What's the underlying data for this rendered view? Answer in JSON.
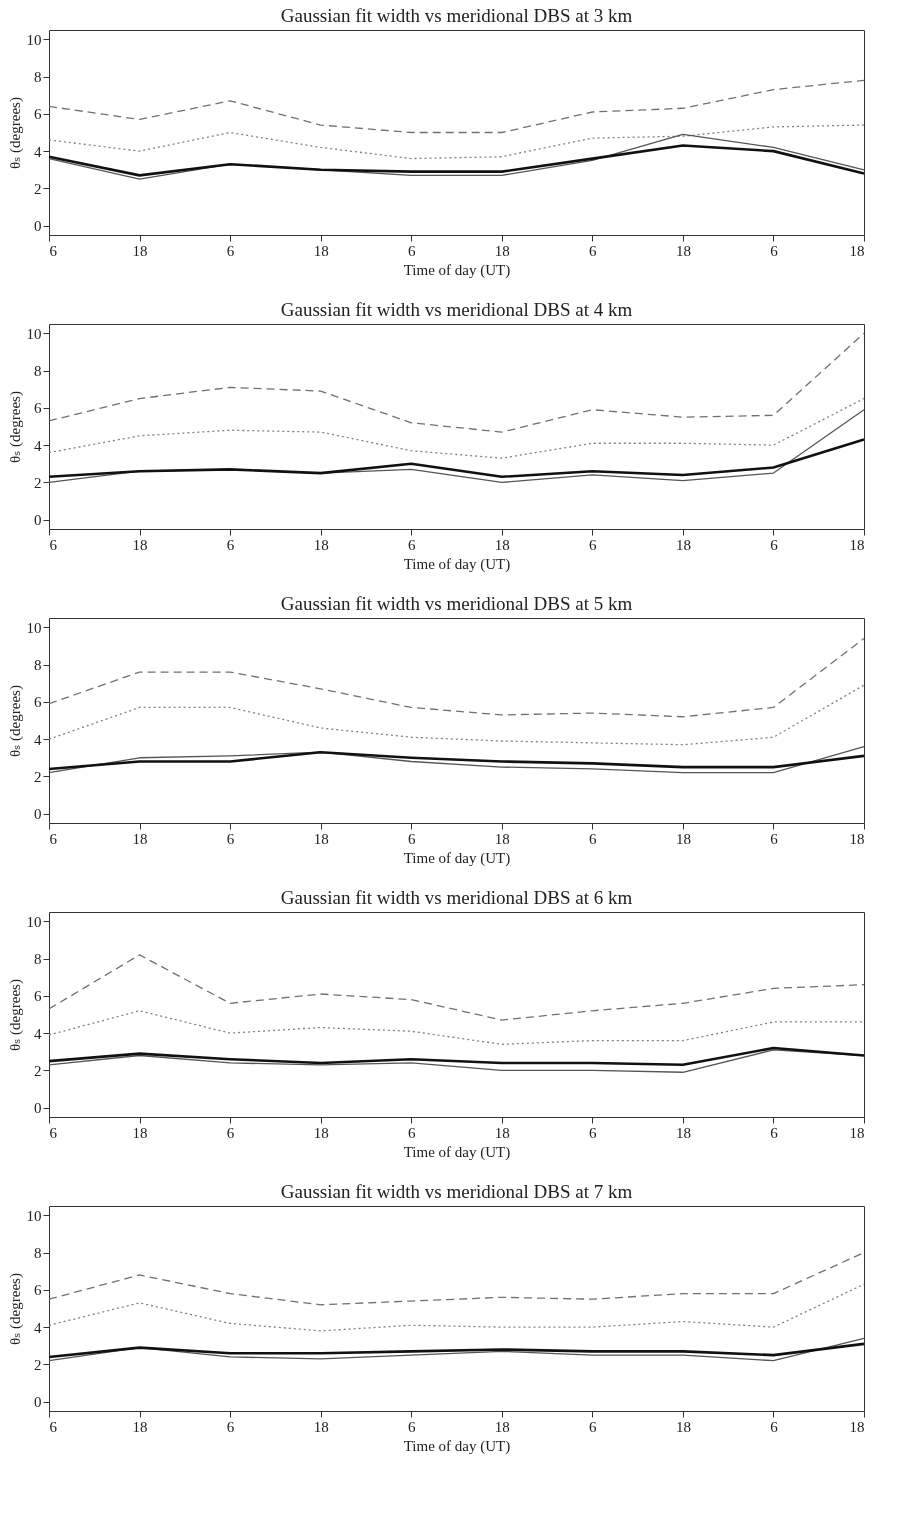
{
  "chart_data": [
    {
      "type": "line",
      "title": "Gaussian fit width vs meridional DBS at 3 km",
      "xlabel": "Time of day (UT)",
      "ylabel": "θₛ (degrees)",
      "categories": [
        "6",
        "18",
        "6",
        "18",
        "6",
        "18",
        "6",
        "18",
        "6",
        "18"
      ],
      "ylim": [
        -0.5,
        10.5
      ],
      "yticks": [
        0,
        2,
        4,
        6,
        8,
        10
      ],
      "grid": false,
      "series": [
        {
          "color": "#707070",
          "line_style": "dashed",
          "values": [
            6.4,
            5.7,
            6.7,
            5.4,
            5.0,
            5.0,
            6.1,
            6.3,
            7.3,
            7.8
          ]
        },
        {
          "color": "#808080",
          "line_style": "dotted",
          "values": [
            4.6,
            4.0,
            5.0,
            4.2,
            3.6,
            3.7,
            4.7,
            4.8,
            5.3,
            5.4
          ]
        },
        {
          "color": "#555555",
          "line_style": "solid",
          "values": [
            3.6,
            2.5,
            3.3,
            3.0,
            2.7,
            2.7,
            3.5,
            4.9,
            4.2,
            3.0
          ]
        },
        {
          "color": "#111111",
          "line_style": "solid",
          "values": [
            3.7,
            2.7,
            3.3,
            3.0,
            2.9,
            2.9,
            3.6,
            4.3,
            4.0,
            2.8
          ]
        }
      ]
    },
    {
      "type": "line",
      "title": "Gaussian fit width vs meridional DBS at 4 km",
      "xlabel": "Time of day (UT)",
      "ylabel": "θₛ (degrees)",
      "categories": [
        "6",
        "18",
        "6",
        "18",
        "6",
        "18",
        "6",
        "18",
        "6",
        "18"
      ],
      "ylim": [
        -0.5,
        10.5
      ],
      "yticks": [
        0,
        2,
        4,
        6,
        8,
        10
      ],
      "grid": false,
      "series": [
        {
          "color": "#707070",
          "line_style": "dashed",
          "values": [
            5.3,
            6.5,
            7.1,
            6.9,
            5.2,
            4.7,
            5.9,
            5.5,
            5.6,
            10.0
          ]
        },
        {
          "color": "#808080",
          "line_style": "dotted",
          "values": [
            3.6,
            4.5,
            4.8,
            4.7,
            3.7,
            3.3,
            4.1,
            4.1,
            4.0,
            6.5
          ]
        },
        {
          "color": "#555555",
          "line_style": "solid",
          "values": [
            2.0,
            2.6,
            2.7,
            2.5,
            2.7,
            2.0,
            2.4,
            2.1,
            2.5,
            5.9
          ]
        },
        {
          "color": "#111111",
          "line_style": "solid",
          "values": [
            2.3,
            2.6,
            2.7,
            2.5,
            3.0,
            2.3,
            2.6,
            2.4,
            2.8,
            4.3
          ]
        }
      ]
    },
    {
      "type": "line",
      "title": "Gaussian fit width vs meridional DBS at 5 km",
      "xlabel": "Time of day (UT)",
      "ylabel": "θₛ (degrees)",
      "categories": [
        "6",
        "18",
        "6",
        "18",
        "6",
        "18",
        "6",
        "18",
        "6",
        "18"
      ],
      "ylim": [
        -0.5,
        10.5
      ],
      "yticks": [
        0,
        2,
        4,
        6,
        8,
        10
      ],
      "grid": false,
      "series": [
        {
          "color": "#707070",
          "line_style": "dashed",
          "values": [
            5.9,
            7.6,
            7.6,
            6.7,
            5.7,
            5.3,
            5.4,
            5.2,
            5.7,
            9.4
          ]
        },
        {
          "color": "#808080",
          "line_style": "dotted",
          "values": [
            4.0,
            5.7,
            5.7,
            4.6,
            4.1,
            3.9,
            3.8,
            3.7,
            4.1,
            6.9
          ]
        },
        {
          "color": "#555555",
          "line_style": "solid",
          "values": [
            2.2,
            3.0,
            3.1,
            3.3,
            2.8,
            2.5,
            2.4,
            2.2,
            2.2,
            3.6
          ]
        },
        {
          "color": "#111111",
          "line_style": "solid",
          "values": [
            2.4,
            2.8,
            2.8,
            3.3,
            3.0,
            2.8,
            2.7,
            2.5,
            2.5,
            3.1
          ]
        }
      ]
    },
    {
      "type": "line",
      "title": "Gaussian fit width vs meridional DBS at 6 km",
      "xlabel": "Time of day (UT)",
      "ylabel": "θₛ (degrees)",
      "categories": [
        "6",
        "18",
        "6",
        "18",
        "6",
        "18",
        "6",
        "18",
        "6",
        "18"
      ],
      "ylim": [
        -0.5,
        10.5
      ],
      "yticks": [
        0,
        2,
        4,
        6,
        8,
        10
      ],
      "grid": false,
      "series": [
        {
          "color": "#707070",
          "line_style": "dashed",
          "values": [
            5.3,
            8.2,
            5.6,
            6.1,
            5.8,
            4.7,
            5.2,
            5.6,
            6.4,
            6.6
          ]
        },
        {
          "color": "#808080",
          "line_style": "dotted",
          "values": [
            3.9,
            5.2,
            4.0,
            4.3,
            4.1,
            3.4,
            3.6,
            3.6,
            4.6,
            4.6
          ]
        },
        {
          "color": "#555555",
          "line_style": "solid",
          "values": [
            2.3,
            2.8,
            2.4,
            2.3,
            2.4,
            2.0,
            2.0,
            1.9,
            3.1,
            2.8
          ]
        },
        {
          "color": "#111111",
          "line_style": "solid",
          "values": [
            2.5,
            2.9,
            2.6,
            2.4,
            2.6,
            2.4,
            2.4,
            2.3,
            3.2,
            2.8
          ]
        }
      ]
    },
    {
      "type": "line",
      "title": "Gaussian fit width vs meridional DBS at 7 km",
      "xlabel": "Time of day (UT)",
      "ylabel": "θₛ (degrees)",
      "categories": [
        "6",
        "18",
        "6",
        "18",
        "6",
        "18",
        "6",
        "18",
        "6",
        "18"
      ],
      "ylim": [
        -0.5,
        10.5
      ],
      "yticks": [
        0,
        2,
        4,
        6,
        8,
        10
      ],
      "grid": false,
      "series": [
        {
          "color": "#707070",
          "line_style": "dashed",
          "values": [
            5.5,
            6.8,
            5.8,
            5.2,
            5.4,
            5.6,
            5.5,
            5.8,
            5.8,
            8.0
          ]
        },
        {
          "color": "#808080",
          "line_style": "dotted",
          "values": [
            4.1,
            5.3,
            4.2,
            3.8,
            4.1,
            4.0,
            4.0,
            4.3,
            4.0,
            6.3
          ]
        },
        {
          "color": "#555555",
          "line_style": "solid",
          "values": [
            2.2,
            2.9,
            2.4,
            2.3,
            2.5,
            2.7,
            2.5,
            2.5,
            2.2,
            3.4
          ]
        },
        {
          "color": "#111111",
          "line_style": "solid",
          "values": [
            2.4,
            2.9,
            2.6,
            2.6,
            2.7,
            2.8,
            2.7,
            2.7,
            2.5,
            3.1
          ]
        }
      ]
    }
  ]
}
